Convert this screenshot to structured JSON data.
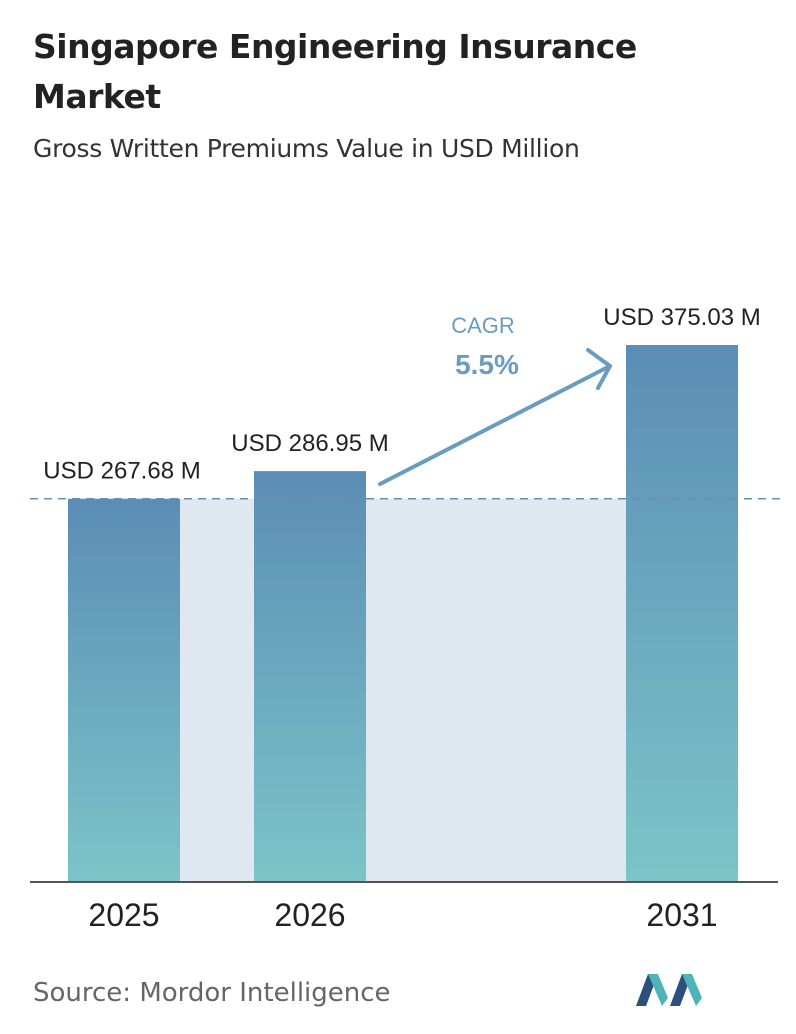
{
  "header": {
    "title": "Singapore Engineering Insurance Market",
    "subtitle": "Gross Written Premiums Value in USD Million"
  },
  "chart_data": {
    "type": "bar",
    "categories": [
      "2025",
      "2026",
      "2031"
    ],
    "values": [
      267.68,
      286.95,
      375.03
    ],
    "value_labels": [
      "USD 267.68 M",
      "USD 286.95 M",
      "USD 375.03 M"
    ],
    "ylim": [
      0,
      375.03
    ],
    "cagr_label": "CAGR",
    "cagr_value": "5.5%",
    "colors": {
      "bar_top": "#5b8db5",
      "bar_bottom": "#7cc4c8",
      "band": "#dfe8f0",
      "arrow": "#6a9cc0",
      "dashed_line": "#6a8eb0",
      "axis": "#555555"
    }
  },
  "footer": {
    "source": "Source: Mordor Intelligence",
    "logo": "mordor-intelligence-logo"
  }
}
